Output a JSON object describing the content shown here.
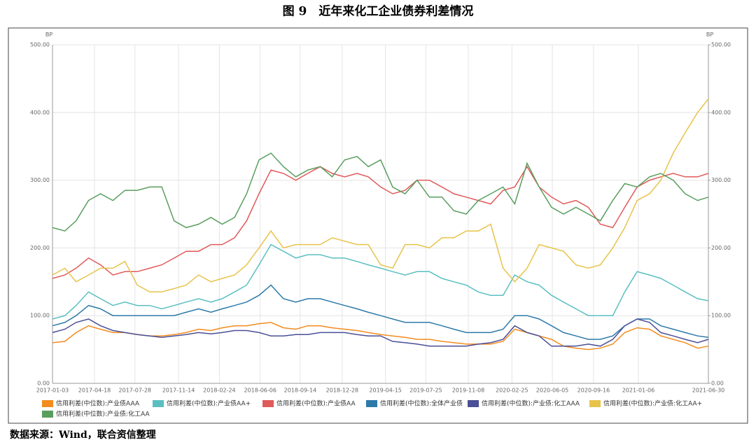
{
  "chart_data": {
    "type": "line",
    "title": "图 9　近年来化工企业债券利差情况",
    "y_unit": "BP",
    "y2_unit": "BP",
    "source": "数据来源：Wind，联合资信整理",
    "x": [
      "2017-01-03",
      "2017-02-03",
      "2017-03-03",
      "2017-04-03",
      "2017-05-03",
      "2017-06-03",
      "2017-07-03",
      "2017-08-03",
      "2017-09-03",
      "2017-10-03",
      "2017-11-03",
      "2017-12-03",
      "2018-01-03",
      "2018-02-03",
      "2018-03-03",
      "2018-04-03",
      "2018-05-03",
      "2018-06-03",
      "2018-07-03",
      "2018-08-03",
      "2018-09-03",
      "2018-10-03",
      "2018-11-03",
      "2018-12-03",
      "2019-01-03",
      "2019-02-03",
      "2019-03-03",
      "2019-04-03",
      "2019-05-03",
      "2019-06-03",
      "2019-07-03",
      "2019-08-03",
      "2019-09-03",
      "2019-10-03",
      "2019-11-03",
      "2019-12-03",
      "2020-01-03",
      "2020-02-03",
      "2020-03-03",
      "2020-04-03",
      "2020-05-03",
      "2020-06-03",
      "2020-07-03",
      "2020-08-03",
      "2020-09-03",
      "2020-10-03",
      "2020-11-03",
      "2020-12-03",
      "2021-01-03",
      "2021-02-03",
      "2021-03-03",
      "2021-04-03",
      "2021-05-03",
      "2021-06-03",
      "2021-06-30"
    ],
    "xlim": [
      "2017-01-03",
      "2021-06-30"
    ],
    "xticks": [
      "2017-01-03",
      "2017-04-18",
      "2017-07-28",
      "2017-11-14",
      "2018-02-24",
      "2018-06-06",
      "2018-09-14",
      "2018-12-28",
      "2019-04-15",
      "2019-07-25",
      "2019-11-08",
      "2020-02-25",
      "2020-06-05",
      "2020-09-16",
      "2021-01-06",
      "2021-06-30"
    ],
    "ylim": [
      0,
      500
    ],
    "yticks": [
      {
        "value": 0,
        "label": "0.00"
      },
      {
        "value": 100,
        "label": "100.00"
      },
      {
        "value": 200,
        "label": "200.00"
      },
      {
        "value": 300,
        "label": "300.00"
      },
      {
        "value": 400,
        "label": "400.00"
      },
      {
        "value": 500,
        "label": "500.00"
      }
    ],
    "y2lim": [
      0,
      500
    ],
    "y2ticks": [
      {
        "value": 0,
        "label": "0.00"
      },
      {
        "value": 100,
        "label": "100.00"
      },
      {
        "value": 200,
        "label": "200.00"
      },
      {
        "value": 300,
        "label": "300.00"
      },
      {
        "value": 400,
        "label": "400.00"
      },
      {
        "value": 500,
        "label": "500.00"
      }
    ],
    "grid": true,
    "legend": "bottom",
    "series": [
      {
        "name": "信用利差(中位数):产业债AAA",
        "color": "#f28c1e",
        "values": [
          60,
          62,
          75,
          85,
          80,
          75,
          75,
          72,
          70,
          70,
          72,
          75,
          80,
          78,
          82,
          85,
          85,
          88,
          90,
          82,
          80,
          85,
          85,
          82,
          80,
          78,
          75,
          72,
          70,
          68,
          65,
          65,
          62,
          60,
          58,
          58,
          58,
          62,
          80,
          75,
          70,
          65,
          55,
          52,
          50,
          52,
          58,
          75,
          82,
          80,
          70,
          65,
          60,
          52,
          55
        ]
      },
      {
        "name": "信用利差(中位数):产业债AA+",
        "color": "#5bbfc2",
        "values": [
          95,
          100,
          115,
          135,
          125,
          115,
          120,
          115,
          115,
          110,
          115,
          120,
          125,
          120,
          125,
          135,
          145,
          175,
          205,
          195,
          185,
          190,
          190,
          185,
          185,
          180,
          175,
          170,
          165,
          160,
          165,
          165,
          155,
          150,
          145,
          135,
          130,
          130,
          160,
          150,
          145,
          130,
          120,
          110,
          100,
          100,
          100,
          135,
          165,
          160,
          155,
          145,
          135,
          125,
          122
        ]
      },
      {
        "name": "信用利差(中位数):产业债AA",
        "color": "#e05a5a",
        "values": [
          155,
          160,
          170,
          185,
          175,
          160,
          165,
          165,
          170,
          175,
          185,
          195,
          195,
          205,
          205,
          215,
          240,
          280,
          315,
          310,
          300,
          310,
          320,
          310,
          305,
          310,
          305,
          290,
          280,
          285,
          300,
          300,
          290,
          280,
          275,
          270,
          265,
          285,
          290,
          320,
          290,
          275,
          265,
          270,
          260,
          235,
          230,
          260,
          290,
          300,
          305,
          310,
          305,
          305,
          310
        ]
      },
      {
        "name": "信用利差(中位数):全体产业债",
        "color": "#2d7aa8",
        "values": [
          85,
          90,
          100,
          115,
          110,
          100,
          100,
          100,
          100,
          100,
          100,
          105,
          110,
          105,
          110,
          115,
          120,
          130,
          145,
          125,
          120,
          125,
          125,
          120,
          115,
          110,
          105,
          100,
          95,
          90,
          90,
          90,
          85,
          80,
          75,
          75,
          75,
          80,
          100,
          100,
          95,
          85,
          75,
          70,
          65,
          65,
          70,
          85,
          95,
          95,
          85,
          80,
          75,
          70,
          68
        ]
      },
      {
        "name": "信用利差(中位数):产业债:化工AAA",
        "color": "#4a4f96",
        "values": [
          75,
          80,
          90,
          95,
          85,
          78,
          75,
          72,
          70,
          68,
          70,
          72,
          75,
          73,
          75,
          78,
          78,
          75,
          70,
          70,
          72,
          72,
          75,
          75,
          75,
          72,
          70,
          70,
          62,
          60,
          58,
          55,
          55,
          55,
          55,
          58,
          60,
          65,
          85,
          75,
          70,
          55,
          55,
          55,
          58,
          55,
          65,
          85,
          95,
          90,
          75,
          70,
          65,
          60,
          65
        ]
      },
      {
        "name": "信用利差(中位数):产业债:化工AA+",
        "color": "#e8c34a",
        "values": [
          160,
          170,
          150,
          160,
          170,
          170,
          180,
          145,
          135,
          135,
          140,
          145,
          160,
          150,
          155,
          160,
          175,
          200,
          225,
          200,
          205,
          205,
          205,
          215,
          210,
          205,
          205,
          175,
          170,
          205,
          205,
          200,
          215,
          215,
          225,
          225,
          235,
          170,
          150,
          170,
          205,
          200,
          195,
          175,
          170,
          175,
          200,
          230,
          270,
          280,
          300,
          340,
          370,
          400,
          420
        ]
      },
      {
        "name": "信用利差(中位数):产业债:化工AA",
        "color": "#5a9e5f",
        "values": [
          230,
          225,
          240,
          270,
          280,
          270,
          285,
          285,
          290,
          290,
          240,
          230,
          235,
          245,
          235,
          245,
          280,
          330,
          340,
          320,
          305,
          315,
          320,
          305,
          330,
          335,
          320,
          330,
          290,
          280,
          300,
          275,
          275,
          255,
          250,
          270,
          280,
          290,
          265,
          325,
          290,
          260,
          250,
          260,
          250,
          240,
          270,
          295,
          290,
          305,
          310,
          300,
          280,
          270,
          275
        ]
      }
    ]
  }
}
